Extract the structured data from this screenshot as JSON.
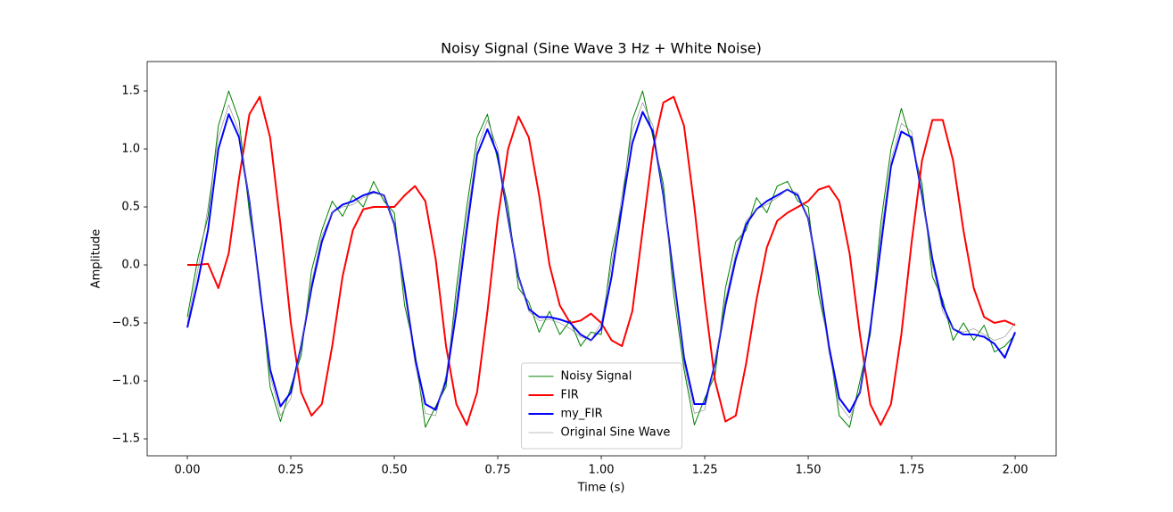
{
  "chart_data": {
    "type": "line",
    "title": "Noisy Signal (Sine Wave 3 Hz + White Noise)",
    "x_label": "Time (s)",
    "y_label": "Amplitude",
    "x": [
      0,
      0.025,
      0.05,
      0.075,
      0.1,
      0.125,
      0.15,
      0.175,
      0.2,
      0.225,
      0.25,
      0.275,
      0.3,
      0.325,
      0.35,
      0.375,
      0.4,
      0.425,
      0.45,
      0.475,
      0.5,
      0.525,
      0.55,
      0.575,
      0.6,
      0.625,
      0.65,
      0.675,
      0.7,
      0.725,
      0.75,
      0.775,
      0.8,
      0.825,
      0.85,
      0.875,
      0.9,
      0.925,
      0.95,
      0.975,
      1,
      1.025,
      1.05,
      1.075,
      1.1,
      1.125,
      1.15,
      1.175,
      1.2,
      1.225,
      1.25,
      1.275,
      1.3,
      1.325,
      1.35,
      1.375,
      1.4,
      1.425,
      1.45,
      1.475,
      1.5,
      1.525,
      1.55,
      1.575,
      1.6,
      1.625,
      1.65,
      1.675,
      1.7,
      1.725,
      1.75,
      1.775,
      1.8,
      1.825,
      1.85,
      1.875,
      1.9,
      1.925,
      1.95,
      1.975,
      2
    ],
    "series": [
      {
        "name": "Noisy Signal",
        "color": "#008000",
        "width": 1,
        "values": [
          -0.45,
          0.05,
          0.42,
          1.2,
          1.5,
          1.25,
          0.45,
          -0.15,
          -1.05,
          -1.35,
          -1.05,
          -0.78,
          -0.05,
          0.3,
          0.55,
          0.42,
          0.6,
          0.5,
          0.72,
          0.55,
          0.45,
          -0.35,
          -0.75,
          -1.4,
          -1.22,
          -1.05,
          -0.2,
          0.5,
          1.1,
          1.3,
          0.9,
          0.5,
          -0.2,
          -0.32,
          -0.58,
          -0.4,
          -0.6,
          -0.48,
          -0.7,
          -0.58,
          -0.6,
          0.1,
          0.52,
          1.25,
          1.5,
          1.1,
          0.7,
          -0.25,
          -0.9,
          -1.38,
          -1.15,
          -0.95,
          -0.2,
          0.2,
          0.3,
          0.58,
          0.45,
          0.68,
          0.72,
          0.55,
          0.5,
          -0.25,
          -0.68,
          -1.3,
          -1.4,
          -1.0,
          -0.6,
          0.35,
          1.0,
          1.35,
          1.05,
          0.7,
          -0.1,
          -0.3,
          -0.65,
          -0.5,
          -0.65,
          -0.52,
          -0.75,
          -0.7,
          -0.6
        ]
      },
      {
        "name": "FIR",
        "color": "#ff0000",
        "width": 2,
        "values": [
          0,
          0,
          0.01,
          -0.2,
          0.1,
          0.75,
          1.3,
          1.45,
          1.1,
          0.35,
          -0.5,
          -1.1,
          -1.3,
          -1.2,
          -0.7,
          -0.1,
          0.3,
          0.48,
          0.5,
          0.5,
          0.5,
          0.6,
          0.68,
          0.55,
          0.05,
          -0.7,
          -1.2,
          -1.38,
          -1.1,
          -0.4,
          0.4,
          1.0,
          1.28,
          1.1,
          0.6,
          0.0,
          -0.35,
          -0.5,
          -0.48,
          -0.42,
          -0.5,
          -0.65,
          -0.7,
          -0.4,
          0.3,
          1.0,
          1.4,
          1.45,
          1.2,
          0.5,
          -0.3,
          -1.0,
          -1.35,
          -1.3,
          -0.85,
          -0.3,
          0.15,
          0.38,
          0.45,
          0.5,
          0.55,
          0.65,
          0.68,
          0.55,
          0.1,
          -0.6,
          -1.2,
          -1.38,
          -1.2,
          -0.6,
          0.2,
          0.9,
          1.25,
          1.25,
          0.9,
          0.3,
          -0.2,
          -0.45,
          -0.5,
          -0.48,
          -0.52
        ]
      },
      {
        "name": "my_FIR",
        "color": "#0000ff",
        "width": 2,
        "values": [
          -0.54,
          -0.15,
          0.3,
          1.0,
          1.3,
          1.1,
          0.55,
          -0.2,
          -0.9,
          -1.22,
          -1.1,
          -0.7,
          -0.2,
          0.2,
          0.45,
          0.52,
          0.55,
          0.6,
          0.63,
          0.6,
          0.35,
          -0.2,
          -0.8,
          -1.2,
          -1.25,
          -1.0,
          -0.4,
          0.3,
          0.95,
          1.17,
          0.95,
          0.4,
          -0.1,
          -0.38,
          -0.45,
          -0.45,
          -0.47,
          -0.5,
          -0.6,
          -0.65,
          -0.55,
          -0.1,
          0.5,
          1.05,
          1.32,
          1.15,
          0.6,
          -0.1,
          -0.8,
          -1.2,
          -1.2,
          -0.85,
          -0.35,
          0.05,
          0.35,
          0.48,
          0.55,
          0.6,
          0.65,
          0.6,
          0.4,
          -0.1,
          -0.7,
          -1.15,
          -1.27,
          -1.1,
          -0.55,
          0.15,
          0.85,
          1.15,
          1.1,
          0.6,
          0.05,
          -0.35,
          -0.55,
          -0.6,
          -0.6,
          -0.62,
          -0.68,
          -0.8,
          -0.58
        ]
      },
      {
        "name": "Original Sine Wave",
        "color": "#808080",
        "width": 0.6,
        "values": [
          -0.5,
          -0.05,
          0.5,
          1.1,
          1.38,
          1.15,
          0.55,
          -0.25,
          -0.95,
          -1.3,
          -1.15,
          -0.7,
          -0.15,
          0.25,
          0.45,
          0.5,
          0.52,
          0.58,
          0.62,
          0.6,
          0.35,
          -0.25,
          -0.85,
          -1.28,
          -1.3,
          -0.95,
          -0.3,
          0.4,
          1.0,
          1.25,
          1.0,
          0.4,
          -0.1,
          -0.4,
          -0.48,
          -0.47,
          -0.5,
          -0.55,
          -0.62,
          -0.65,
          -0.5,
          0.0,
          0.6,
          1.15,
          1.4,
          1.2,
          0.6,
          -0.15,
          -0.85,
          -1.28,
          -1.25,
          -0.85,
          -0.3,
          0.1,
          0.38,
          0.48,
          0.52,
          0.58,
          0.65,
          0.62,
          0.4,
          -0.15,
          -0.75,
          -1.2,
          -1.32,
          -1.1,
          -0.5,
          0.25,
          0.9,
          1.22,
          1.15,
          0.6,
          0.0,
          -0.4,
          -0.55,
          -0.58,
          -0.55,
          -0.6,
          -0.65,
          -0.62,
          -0.5
        ]
      }
    ],
    "xlim": [
      -0.097,
      2.099
    ],
    "ylim": [
      -1.646,
      1.754
    ],
    "xticks": [
      {
        "value": 0,
        "label": "0.00"
      },
      {
        "value": 0.25,
        "label": "0.25"
      },
      {
        "value": 0.5,
        "label": "0.50"
      },
      {
        "value": 0.75,
        "label": "0.75"
      },
      {
        "value": 1,
        "label": "1.00"
      },
      {
        "value": 1.25,
        "label": "1.25"
      },
      {
        "value": 1.5,
        "label": "1.50"
      },
      {
        "value": 1.75,
        "label": "1.75"
      },
      {
        "value": 2,
        "label": "2.00"
      }
    ],
    "yticks": [
      {
        "value": -1.5,
        "label": "−1.5"
      },
      {
        "value": -1,
        "label": "−1.0"
      },
      {
        "value": -0.5,
        "label": "−0.5"
      },
      {
        "value": 0,
        "label": "0.0"
      },
      {
        "value": 0.5,
        "label": "0.5"
      },
      {
        "value": 1,
        "label": "1.0"
      },
      {
        "value": 1.5,
        "label": "1.5"
      }
    ],
    "legend": "lower center"
  }
}
